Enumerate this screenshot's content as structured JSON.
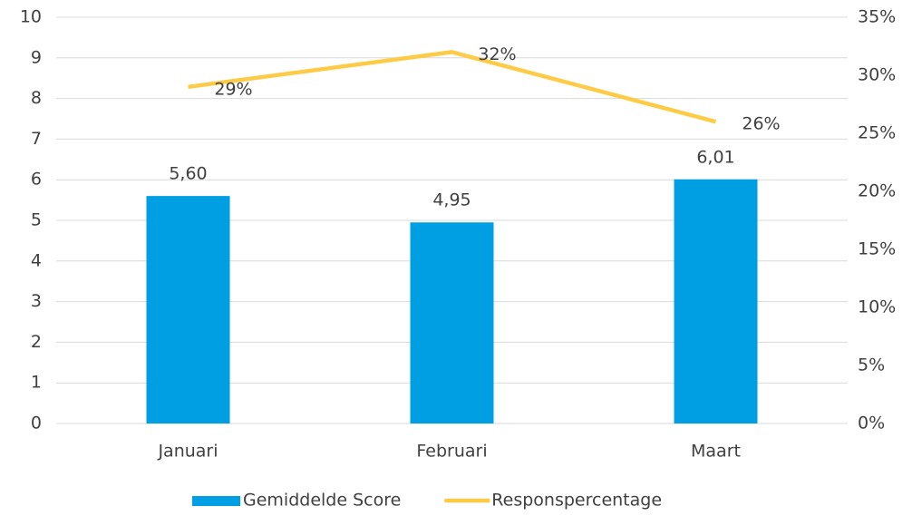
{
  "chart_data": {
    "type": "bar",
    "categories": [
      "Januari",
      "Februari",
      "Maart"
    ],
    "series": [
      {
        "name": "Gemiddelde Score",
        "color": "#009fe3",
        "values": [
          5.6,
          4.95,
          6.01
        ],
        "value_labels": [
          "5,60",
          "4,95",
          "6,01"
        ]
      },
      {
        "name": "Responspercentage",
        "type": "line",
        "axis": "y2",
        "color": "#fdcb45",
        "values": [
          29,
          32,
          26
        ],
        "value_labels": [
          "29%",
          "32%",
          "26%"
        ]
      }
    ],
    "ylim": [
      0,
      10
    ],
    "yticks": [
      0,
      1,
      2,
      3,
      4,
      5,
      6,
      7,
      8,
      9,
      10
    ],
    "y2lim": [
      0,
      35
    ],
    "y2ticks": [
      {
        "value": 0,
        "label": "0%"
      },
      {
        "value": 5,
        "label": "5%"
      },
      {
        "value": 10,
        "label": "10%"
      },
      {
        "value": 15,
        "label": "15%"
      },
      {
        "value": 20,
        "label": "20%"
      },
      {
        "value": 25,
        "label": "25%"
      },
      {
        "value": 30,
        "label": "30%"
      },
      {
        "value": 35,
        "label": "35%"
      }
    ],
    "grid": true,
    "legend": "bottom"
  }
}
